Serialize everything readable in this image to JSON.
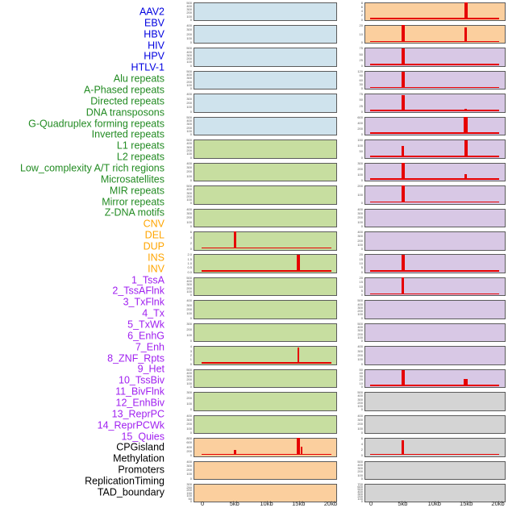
{
  "palette": {
    "virus": {
      "label": "#0000E0",
      "panel": "#CFE3ED"
    },
    "repeat": {
      "label": "#228B22",
      "panel": "#C7DEA0"
    },
    "variant": {
      "label": "#FFA500",
      "panel": "#FBCF9E"
    },
    "chromatin": {
      "label": "#A020F0",
      "panel": "#D8C8E5"
    },
    "annotation": {
      "label": "#000000",
      "panel": "#D4D4D4"
    },
    "signal": "#E60000",
    "panel_border": "#5B5B5B"
  },
  "chart_data": {
    "type": "area",
    "title": "",
    "description": "Two-column small-multiple signal tracks over a 0-20kb genomic window; red signal peaks mostly at the 5kb and 15kb positions. Left column = tracks 1-22, right column = tracks 23-44.",
    "layout": {
      "columns": 2,
      "panels_per_column": 22,
      "grid": false,
      "legend": false
    },
    "x_axis": {
      "tick_labels": [
        "0",
        "5kb",
        "10kb",
        "15kb",
        "20kb"
      ],
      "tick_positions_kb": [
        0,
        5,
        10,
        15,
        20
      ],
      "range_kb": [
        0,
        20
      ]
    },
    "tracks": [
      {
        "label": "AAV2",
        "category": "virus",
        "yticks": [
          "500",
          "400",
          "300",
          "200",
          "100",
          "0"
        ],
        "peaks": []
      },
      {
        "label": "EBV",
        "category": "virus",
        "yticks": [
          "400",
          "300",
          "200",
          "100",
          "0"
        ],
        "peaks": []
      },
      {
        "label": "HBV",
        "category": "virus",
        "yticks": [
          "500",
          "400",
          "300",
          "200",
          "100",
          "0"
        ],
        "peaks": []
      },
      {
        "label": "HIV",
        "category": "virus",
        "yticks": [
          "500",
          "400",
          "300",
          "200",
          "100",
          "0"
        ],
        "peaks": []
      },
      {
        "label": "HPV",
        "category": "virus",
        "yticks": [
          "400",
          "300",
          "200",
          "100",
          "0"
        ],
        "peaks": []
      },
      {
        "label": "HTLV-1",
        "category": "virus",
        "yticks": [
          "500",
          "400",
          "300",
          "200",
          "100",
          "0"
        ],
        "peaks": []
      },
      {
        "label": "Alu repeats",
        "category": "repeat",
        "yticks": [
          "500",
          "400",
          "300",
          "200",
          "100",
          "0"
        ],
        "peaks": []
      },
      {
        "label": "A-Phased repeats",
        "category": "repeat",
        "yticks": [
          "400",
          "300",
          "200",
          "100",
          "0"
        ],
        "peaks": []
      },
      {
        "label": "Directed repeats",
        "category": "repeat",
        "yticks": [
          "500",
          "400",
          "300",
          "200",
          "100",
          "0"
        ],
        "peaks": []
      },
      {
        "label": "DNA transposons",
        "category": "repeat",
        "yticks": [
          "400",
          "300",
          "200",
          "100",
          "0"
        ],
        "peaks": []
      },
      {
        "label": "G-Quadruplex forming repeats",
        "category": "repeat",
        "yticks": [
          "6",
          "4",
          "2",
          "0"
        ],
        "peaks": [
          {
            "x_kb": 5,
            "value": 7,
            "frac": 1.0,
            "w": 3
          }
        ]
      },
      {
        "label": "Inverted repeats",
        "category": "repeat",
        "yticks": [
          "2.0",
          "1.5",
          "1.0",
          "0.5",
          "0.0"
        ],
        "peaks": [
          {
            "x_kb": 15,
            "value": 2.1,
            "frac": 1.0,
            "w": 3.5
          }
        ]
      },
      {
        "label": "L1 repeats",
        "category": "repeat",
        "yticks": [
          "500",
          "400",
          "300",
          "200",
          "100",
          "0"
        ],
        "peaks": []
      },
      {
        "label": "L2 repeats",
        "category": "repeat",
        "yticks": [
          "400",
          "300",
          "200",
          "100",
          "0"
        ],
        "peaks": []
      },
      {
        "label": "Low_complexity A/T rich regions",
        "category": "repeat",
        "yticks": [
          "300",
          "200",
          "100",
          "0"
        ],
        "peaks": []
      },
      {
        "label": "Microsatellites",
        "category": "repeat",
        "yticks": [
          "4",
          "3",
          "2",
          "1",
          "0"
        ],
        "peaks": [
          {
            "x_kb": 15,
            "value": 4.1,
            "frac": 0.94,
            "w": 2.5
          }
        ]
      },
      {
        "label": "MIR repeats",
        "category": "repeat",
        "yticks": [
          "500",
          "400",
          "300",
          "200",
          "100",
          "0"
        ],
        "peaks": []
      },
      {
        "label": "Mirror repeats",
        "category": "repeat",
        "yticks": [
          "300",
          "200",
          "100",
          "0"
        ],
        "peaks": []
      },
      {
        "label": "Z-DNA motifs",
        "category": "repeat",
        "yticks": [
          "400",
          "300",
          "200",
          "100",
          "0"
        ],
        "peaks": []
      },
      {
        "label": "CNV",
        "category": "variant",
        "yticks": [
          "800",
          "600",
          "400",
          "200",
          "0"
        ],
        "peaks": [
          {
            "x_kb": 5,
            "value": 230,
            "frac": 0.28,
            "w": 3
          },
          {
            "x_kb": 15,
            "value": 820,
            "frac": 1.0,
            "w": 4.5
          },
          {
            "x_kb": 15.5,
            "value": 450,
            "frac": 0.5,
            "w": 2
          }
        ]
      },
      {
        "label": "DEL",
        "category": "variant",
        "yticks": [
          "400",
          "300",
          "200",
          "100",
          "0"
        ],
        "peaks": []
      },
      {
        "label": "DUP",
        "category": "variant",
        "yticks": [
          "300",
          "250",
          "200",
          "150",
          "100",
          "50",
          "0"
        ],
        "peaks": []
      },
      {
        "label": "INS",
        "category": "variant",
        "yticks": [
          "8",
          "6",
          "4",
          "2",
          "0"
        ],
        "peaks": [
          {
            "x_kb": 15,
            "value": 8.5,
            "frac": 1.0,
            "w": 4
          }
        ]
      },
      {
        "label": "INV",
        "category": "variant",
        "yticks": [
          "20",
          "10",
          "0"
        ],
        "peaks": [
          {
            "x_kb": 5,
            "value": 22,
            "frac": 1.0,
            "w": 4
          },
          {
            "x_kb": 15,
            "value": 19,
            "frac": 0.87,
            "w": 3.5
          }
        ]
      },
      {
        "label": "1_TssA",
        "category": "chromatin",
        "yticks": [
          "75",
          "50",
          "25",
          "0"
        ],
        "peaks": [
          {
            "x_kb": 5,
            "value": 80,
            "frac": 1.0,
            "w": 4
          }
        ]
      },
      {
        "label": "2_TssAFlnk",
        "category": "chromatin",
        "yticks": [
          "120",
          "90",
          "60",
          "30",
          "0"
        ],
        "peaks": [
          {
            "x_kb": 5,
            "value": 117,
            "frac": 0.96,
            "w": 3.5
          }
        ]
      },
      {
        "label": "3_TxFlnk",
        "category": "chromatin",
        "yticks": [
          "75",
          "50",
          "25",
          "0"
        ],
        "peaks": [
          {
            "x_kb": 5,
            "value": 76,
            "frac": 0.95,
            "w": 3.5
          },
          {
            "x_kb": 15,
            "value": 9,
            "frac": 0.12,
            "w": 3
          }
        ]
      },
      {
        "label": "4_Tx",
        "category": "chromatin",
        "yticks": [
          "600",
          "400",
          "200",
          "0"
        ],
        "peaks": [
          {
            "x_kb": 5,
            "value": 75,
            "frac": 0.12,
            "w": 3
          },
          {
            "x_kb": 15,
            "value": 620,
            "frac": 0.98,
            "w": 5
          }
        ]
      },
      {
        "label": "5_TxWk",
        "category": "chromatin",
        "yticks": [
          "150",
          "100",
          "50",
          "0"
        ],
        "peaks": [
          {
            "x_kb": 5,
            "value": 95,
            "frac": 0.62,
            "w": 3
          },
          {
            "x_kb": 15,
            "value": 155,
            "frac": 1.0,
            "w": 4
          }
        ]
      },
      {
        "label": "6_EnhG",
        "category": "chromatin",
        "yticks": [
          "300",
          "200",
          "100",
          "0"
        ],
        "peaks": [
          {
            "x_kb": 5,
            "value": 310,
            "frac": 1.0,
            "w": 4
          },
          {
            "x_kb": 15,
            "value": 100,
            "frac": 0.33,
            "w": 3.5
          }
        ]
      },
      {
        "label": "7_Enh",
        "category": "chromatin",
        "yticks": [
          "200",
          "100",
          "0"
        ],
        "peaks": [
          {
            "x_kb": 5,
            "value": 205,
            "frac": 1.0,
            "w": 3.5
          },
          {
            "x_kb": 15,
            "value": 16,
            "frac": 0.08,
            "w": 3
          }
        ]
      },
      {
        "label": "8_ZNF_Rpts",
        "category": "chromatin",
        "yticks": [
          "400",
          "300",
          "200",
          "100",
          "0"
        ],
        "peaks": []
      },
      {
        "label": "9_Het",
        "category": "chromatin",
        "yticks": [
          "400",
          "300",
          "200",
          "100",
          "0"
        ],
        "peaks": []
      },
      {
        "label": "10_TssBiv",
        "category": "chromatin",
        "yticks": [
          "20",
          "15",
          "10",
          "5",
          "0"
        ],
        "peaks": [
          {
            "x_kb": 5,
            "value": 21,
            "frac": 1.0,
            "w": 3.5
          }
        ]
      },
      {
        "label": "11_BivFlnk",
        "category": "chromatin",
        "yticks": [
          "20",
          "15",
          "10",
          "5",
          "0"
        ],
        "peaks": [
          {
            "x_kb": 5,
            "value": 21,
            "frac": 1.0,
            "w": 3
          }
        ]
      },
      {
        "label": "12_EnhBiv",
        "category": "chromatin",
        "yticks": [
          "500",
          "400",
          "300",
          "200",
          "100",
          "0"
        ],
        "peaks": []
      },
      {
        "label": "13_ReprPC",
        "category": "chromatin",
        "yticks": [
          "500",
          "400",
          "300",
          "200",
          "100",
          "0"
        ],
        "peaks": []
      },
      {
        "label": "14_ReprPCWk",
        "category": "chromatin",
        "yticks": [
          "400",
          "300",
          "200",
          "100",
          "0"
        ],
        "peaks": []
      },
      {
        "label": "15_Quies",
        "category": "chromatin",
        "yticks": [
          "50",
          "40",
          "30",
          "20",
          "10",
          "0"
        ],
        "peaks": [
          {
            "x_kb": 5,
            "value": 50,
            "frac": 0.96,
            "w": 3.5
          },
          {
            "x_kb": 15,
            "value": 21,
            "frac": 0.42,
            "w": 4.5
          }
        ]
      },
      {
        "label": "CPGisland",
        "category": "annotation",
        "yticks": [
          "500",
          "400",
          "300",
          "200",
          "100",
          "0"
        ],
        "peaks": []
      },
      {
        "label": "Methylation",
        "category": "annotation",
        "yticks": [
          "400",
          "300",
          "200",
          "100",
          "0"
        ],
        "peaks": []
      },
      {
        "label": "Promoters",
        "category": "annotation",
        "yticks": [
          "6",
          "4",
          "2",
          "0"
        ],
        "peaks": [
          {
            "x_kb": 5,
            "value": 6.2,
            "frac": 0.88,
            "w": 3
          }
        ]
      },
      {
        "label": "ReplicationTiming",
        "category": "annotation",
        "yticks": [
          "500",
          "400",
          "300",
          "200",
          "100",
          "0"
        ],
        "peaks": []
      },
      {
        "label": "TAD_boundary",
        "category": "annotation",
        "yticks": [
          "700",
          "600",
          "500",
          "400",
          "300",
          "200",
          "100",
          "0"
        ],
        "peaks": []
      }
    ]
  }
}
